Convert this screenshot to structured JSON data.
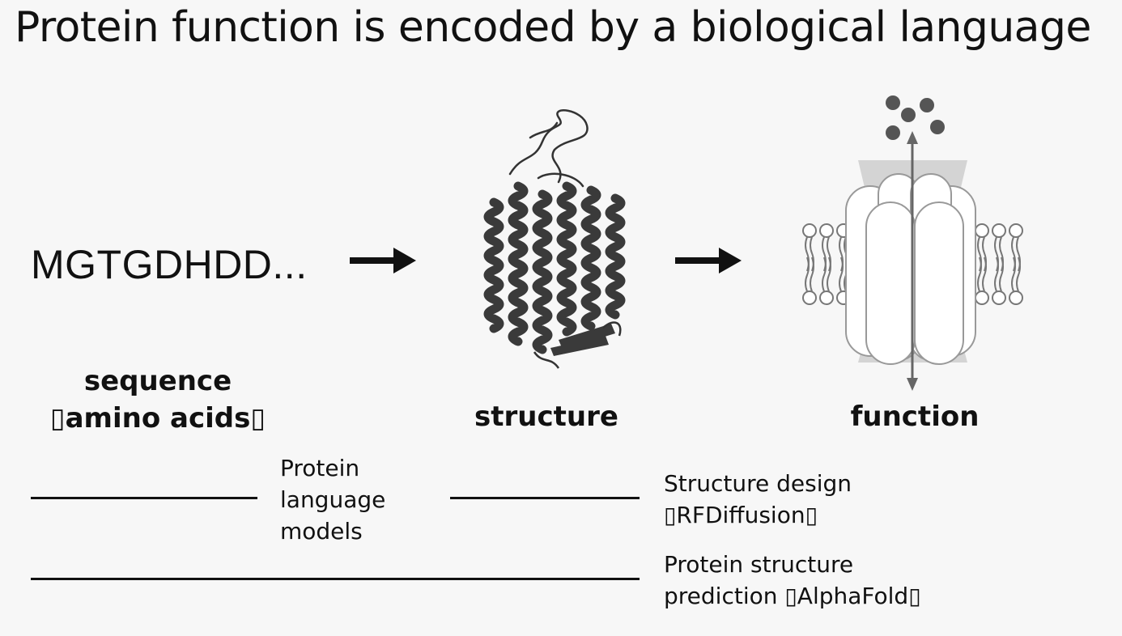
{
  "title": "Protein function is encoded by a biological language",
  "sequence_text": "MGTGDHDD...",
  "stages": {
    "sequence_line1": "sequence",
    "sequence_line2": "▯amino acids▯",
    "structure": "structure",
    "function": "function"
  },
  "methods": {
    "plm": [
      "Protein",
      "language",
      "models"
    ],
    "design": [
      "Structure design",
      "▯RFDiffusion▯"
    ],
    "prediction": [
      "Protein structure",
      "prediction ▯AlphaFold▯"
    ]
  },
  "icons": {
    "structure": "protein-helix-structure-icon",
    "function": "membrane-channel-icon"
  },
  "colors": {
    "text": "#111111",
    "helix": "#3a3a3a",
    "channel_fill": "#ffffff",
    "channel_stroke": "#9a9a9a",
    "molecule": "#555555"
  }
}
